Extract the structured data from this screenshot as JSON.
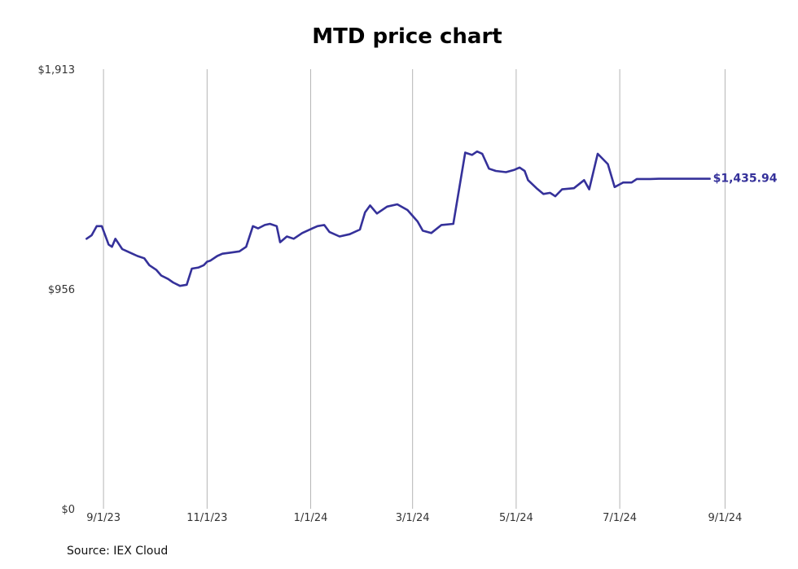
{
  "chart_data": {
    "type": "line",
    "title": "MTD price chart",
    "source": "Source: IEX Cloud",
    "line_color": "#35319a",
    "grid": "vertical",
    "ylim": [
      0,
      1913
    ],
    "y_ticks": [
      {
        "value": 0,
        "label": "$0"
      },
      {
        "value": 956,
        "label": "$956"
      },
      {
        "value": 1913,
        "label": "$1,913"
      }
    ],
    "x_ticks": [
      {
        "date": "2023-09-01",
        "label": "9/1/23"
      },
      {
        "date": "2023-11-01",
        "label": "11/1/23"
      },
      {
        "date": "2024-01-01",
        "label": "1/1/24"
      },
      {
        "date": "2024-03-01",
        "label": "3/1/24"
      },
      {
        "date": "2024-05-01",
        "label": "5/1/24"
      },
      {
        "date": "2024-07-01",
        "label": "7/1/24"
      },
      {
        "date": "2024-09-01",
        "label": "9/1/24"
      }
    ],
    "xlim": [
      "2023-08-19",
      "2024-09-08"
    ],
    "last_value_label": "$1,435.94",
    "series": [
      {
        "x": [
          "2023-08-22",
          "2023-08-25",
          "2023-08-28",
          "2023-08-31",
          "2023-09-04",
          "2023-09-06",
          "2023-09-08",
          "2023-09-12",
          "2023-09-15",
          "2023-09-18",
          "2023-09-21",
          "2023-09-25",
          "2023-09-28",
          "2023-10-02",
          "2023-10-05",
          "2023-10-09",
          "2023-10-12",
          "2023-10-16",
          "2023-10-20",
          "2023-10-23",
          "2023-10-27",
          "2023-10-30",
          "2023-11-01",
          "2023-11-03",
          "2023-11-07",
          "2023-11-10",
          "2023-11-15",
          "2023-11-20",
          "2023-11-24",
          "2023-11-28",
          "2023-12-01",
          "2023-12-05",
          "2023-12-08",
          "2023-12-12",
          "2023-12-14",
          "2023-12-18",
          "2023-12-22",
          "2023-12-27",
          "2024-01-02",
          "2024-01-05",
          "2024-01-09",
          "2024-01-12",
          "2024-01-18",
          "2024-01-24",
          "2024-01-30",
          "2024-02-02",
          "2024-02-05",
          "2024-02-09",
          "2024-02-15",
          "2024-02-21",
          "2024-02-27",
          "2024-03-04",
          "2024-03-07",
          "2024-03-12",
          "2024-03-18",
          "2024-03-25",
          "2024-04-01",
          "2024-04-05",
          "2024-04-08",
          "2024-04-11",
          "2024-04-15",
          "2024-04-19",
          "2024-04-25",
          "2024-04-30",
          "2024-05-03",
          "2024-05-06",
          "2024-05-08",
          "2024-05-13",
          "2024-05-17",
          "2024-05-21",
          "2024-05-24",
          "2024-05-28",
          "2024-06-04",
          "2024-06-10",
          "2024-06-13",
          "2024-06-18",
          "2024-06-24",
          "2024-06-28",
          "2024-07-03",
          "2024-07-08",
          "2024-07-11",
          "2024-07-16",
          "2024-07-19",
          "2024-07-24",
          "2024-07-26",
          "2024-07-29",
          "2024-07-31",
          "2024-08-02",
          "2024-08-05",
          "2024-08-08",
          "2024-08-12",
          "2024-08-15",
          "2024-08-20",
          "2024-08-23"
        ],
        "values": [
          1175,
          1190,
          1230,
          1230,
          1150,
          1140,
          1175,
          1130,
          1120,
          1110,
          1100,
          1090,
          1060,
          1040,
          1015,
          1000,
          985,
          970,
          975,
          1045,
          1050,
          1060,
          1075,
          1080,
          1100,
          1110,
          1115,
          1120,
          1140,
          1230,
          1220,
          1235,
          1240,
          1230,
          1160,
          1185,
          1175,
          1200,
          1220,
          1230,
          1235,
          1205,
          1185,
          1195,
          1215,
          1290,
          1320,
          1285,
          1315,
          1325,
          1300,
          1250,
          1210,
          1200,
          1235,
          1240,
          1550,
          1540,
          1555,
          1545,
          1480,
          1470,
          1465,
          1475,
          1485,
          1470,
          1430,
          1395,
          1370,
          1375,
          1360,
          1390,
          1395,
          1430,
          1390,
          1545,
          1500,
          1400,
          1420,
          1420,
          1435,
          1435,
          1435,
          1436,
          1436,
          1436,
          1436,
          1436,
          1436,
          1436,
          1436,
          1436,
          1436,
          1436
        ]
      }
    ]
  }
}
